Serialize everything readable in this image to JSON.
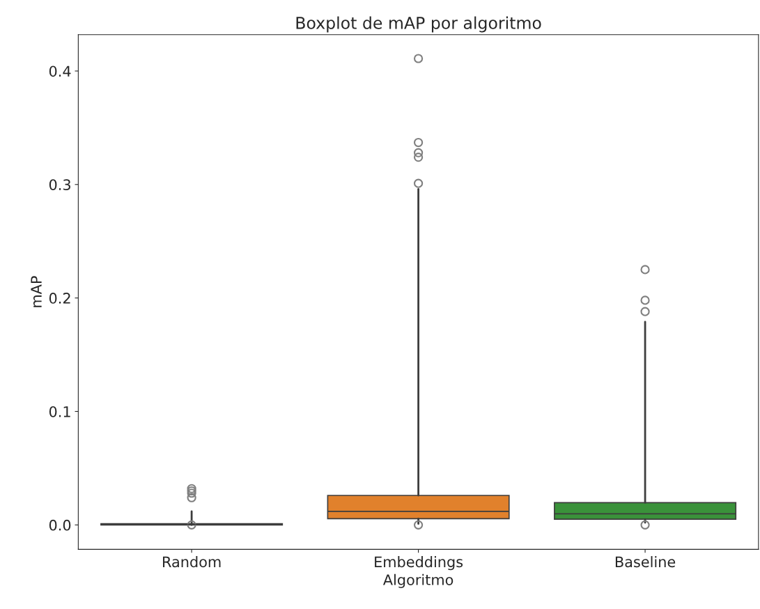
{
  "chart_data": {
    "type": "box",
    "title": "Boxplot de mAP por algoritmo",
    "xlabel": "Algoritmo",
    "ylabel": "mAP",
    "categories": [
      "Random",
      "Embeddings",
      "Baseline"
    ],
    "colors": [
      "#3274a1",
      "#e1812c",
      "#3a923a"
    ],
    "boxes": [
      {
        "low": 0.0,
        "q1": 0.0,
        "median": 0.0005,
        "q3": 0.001,
        "high": 0.012,
        "outliers": [
          0.032,
          0.03,
          0.028,
          0.024,
          0.0
        ]
      },
      {
        "low": 0.001,
        "q1": 0.0055,
        "median": 0.012,
        "q3": 0.026,
        "high": 0.296,
        "outliers": [
          0.411,
          0.337,
          0.328,
          0.324,
          0.301,
          0.0
        ]
      },
      {
        "low": 0.002,
        "q1": 0.005,
        "median": 0.0098,
        "q3": 0.0196,
        "high": 0.179,
        "outliers": [
          0.225,
          0.198,
          0.188,
          0.0
        ]
      }
    ],
    "ylim": [
      -0.0215,
      0.432
    ],
    "yticks": [
      {
        "value": 0,
        "label": "0.0"
      },
      0.1,
      0.2,
      0.3,
      0.4
    ],
    "grid": false
  }
}
